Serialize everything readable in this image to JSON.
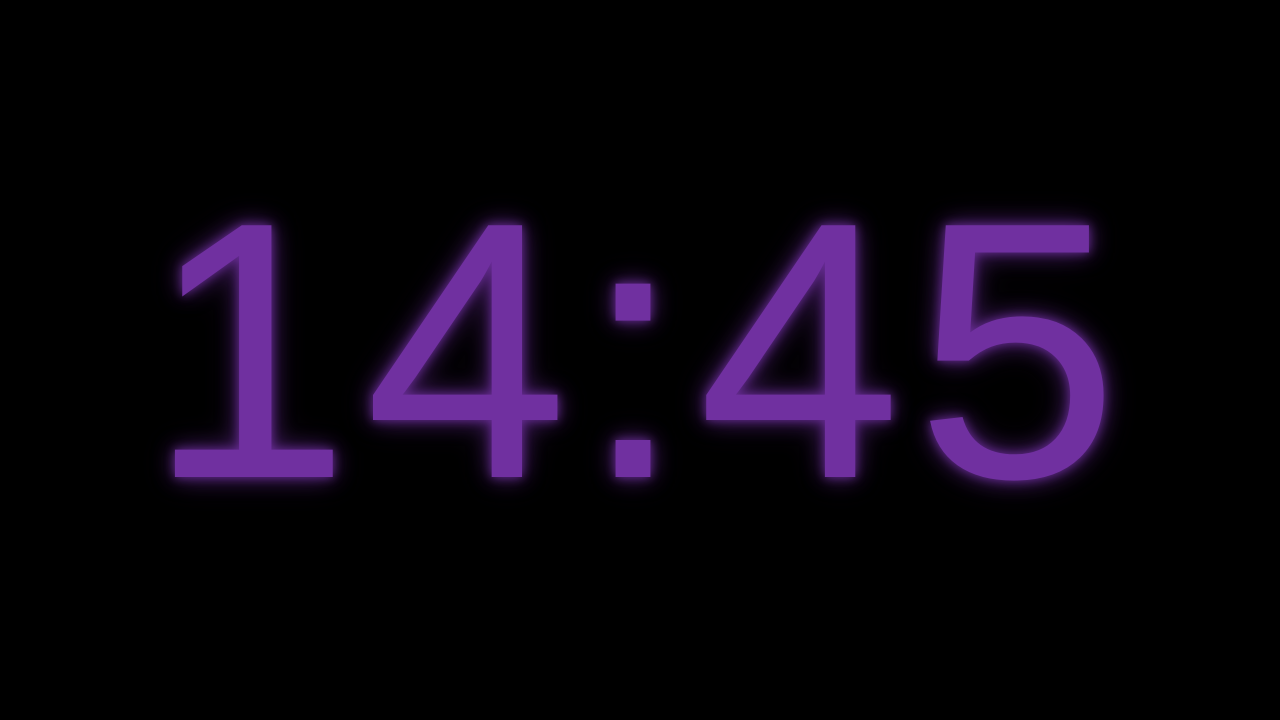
{
  "clock": {
    "time": "14:45",
    "text_color": "#7030a0",
    "glow_color": "#7030a0",
    "background_color": "#000000"
  }
}
